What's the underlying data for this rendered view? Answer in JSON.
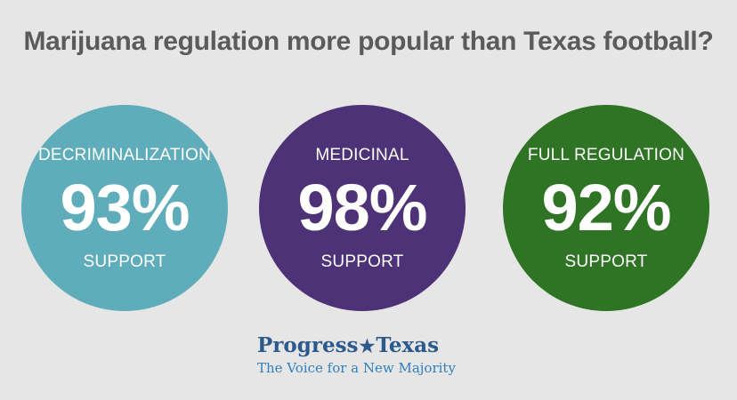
{
  "title": "Marijuana regulation more popular than Texas football?",
  "colors": {
    "background": "#e6e6e6",
    "title": "#5b5b5b",
    "circle_decriminalization": "#5fadbb",
    "circle_medicinal": "#4d3277",
    "circle_full_regulation": "#2f7424",
    "logo_brand": "#2d5a8c",
    "logo_tagline": "#2f7fc1"
  },
  "stats": [
    {
      "label": "DECRIMINALIZATION",
      "percent": "93%",
      "value": 93,
      "caption": "SUPPORT"
    },
    {
      "label": "MEDICINAL",
      "percent": "98%",
      "value": 98,
      "caption": "SUPPORT"
    },
    {
      "label": "FULL REGULATION",
      "percent": "92%",
      "value": 92,
      "caption": "SUPPORT"
    }
  ],
  "logo": {
    "name_part1": "Progress",
    "star_icon": "star-icon",
    "name_part2": "Texas",
    "tagline": "The Voice for a New Majority"
  }
}
